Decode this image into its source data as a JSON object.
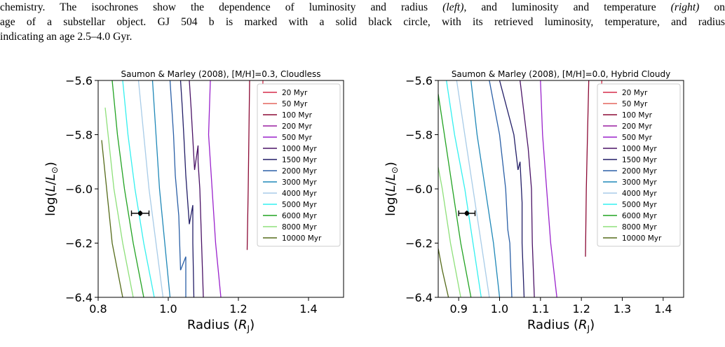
{
  "caption": {
    "line1_pre": "chemistry. The isochrones show the dependence of luminosity and radius ",
    "line1_left": "(left)",
    "line1_mid": ", and luminosity and temperature ",
    "line1_right": "(right)",
    "line1_post": " on",
    "line2": "age of a substellar object. GJ 504 b is marked with a solid black circle, with its retrieved luminosity, temperature, and radius",
    "line3": "indicating an age 2.5–4.0 Gyr."
  },
  "legend_labels": [
    "20 Myr",
    "50 Myr",
    "100 Myr",
    "200 Myr",
    "500 Myr",
    "1000 Myr",
    "1500 Myr",
    "2000 Myr",
    "3000 Myr",
    "4000 Myr",
    "5000 Myr",
    "6000 Myr",
    "8000 Myr",
    "10000 Myr"
  ],
  "series_colors": [
    "#d62c4a",
    "#e3675e",
    "#8b0a35",
    "#9a1ea0",
    "#9a22cc",
    "#4a1266",
    "#221d66",
    "#2a5fa6",
    "#1f88b8",
    "#a8cce8",
    "#33f0f0",
    "#22a322",
    "#8ee07a",
    "#556b1a"
  ],
  "chart_data": [
    {
      "type": "line",
      "title": "Saumon & Marley (2008), [M/H]=0.3, Cloudless",
      "xlabel_main": "Radius (",
      "xlabel_sym": "R",
      "xlabel_sub": "J",
      "xlabel_close": ")",
      "ylabel_main": "log(",
      "ylabel_sym1": "L",
      "ylabel_slash": "/",
      "ylabel_sym2": "L",
      "ylabel_sub": "⊙",
      "ylabel_close": ")",
      "xlim": [
        0.8,
        1.5
      ],
      "ylim": [
        -6.4,
        -5.6
      ],
      "xticks": [
        0.8,
        1.0,
        1.2,
        1.4
      ],
      "xtick_labels": [
        "0.8",
        "1.0",
        "1.2",
        "1.4"
      ],
      "yticks": [
        -6.4,
        -6.2,
        -6.0,
        -5.8,
        -5.6
      ],
      "ytick_labels": [
        "−6.4",
        "−6.2",
        "−6.0",
        "−5.8",
        "−5.6"
      ],
      "legend_position": "top-right",
      "point": {
        "x": 0.92,
        "y": -6.09,
        "xerr": 0.025,
        "yerr": 0.01
      },
      "series": [
        {
          "name": "20 Myr",
          "points": [
            [
              1.265,
              -5.865
            ],
            [
              1.27,
              -5.6
            ]
          ]
        },
        {
          "name": "50 Myr",
          "points": []
        },
        {
          "name": "100 Myr",
          "points": [
            [
              1.225,
              -6.225
            ],
            [
              1.228,
              -6.0
            ],
            [
              1.23,
              -5.8
            ],
            [
              1.232,
              -5.6
            ]
          ]
        },
        {
          "name": "200 Myr",
          "points": []
        },
        {
          "name": "500 Myr",
          "points": [
            [
              1.15,
              -6.4
            ],
            [
              1.135,
              -6.2
            ],
            [
              1.125,
              -6.0
            ],
            [
              1.115,
              -5.8
            ],
            [
              1.12,
              -5.6
            ]
          ]
        },
        {
          "name": "1000 Myr",
          "points": [
            [
              1.1,
              -6.4
            ],
            [
              1.095,
              -6.2
            ],
            [
              1.09,
              -6.0
            ],
            [
              1.085,
              -5.9
            ],
            [
              1.085,
              -5.84
            ],
            [
              1.075,
              -5.93
            ],
            [
              1.065,
              -5.7
            ],
            [
              1.06,
              -5.6
            ]
          ]
        },
        {
          "name": "1500 Myr",
          "points": [
            [
              1.073,
              -6.4
            ],
            [
              1.07,
              -6.2
            ],
            [
              1.07,
              -6.06
            ],
            [
              1.06,
              -6.13
            ],
            [
              1.05,
              -5.95
            ],
            [
              1.045,
              -5.82
            ],
            [
              1.04,
              -5.7
            ],
            [
              1.035,
              -5.6
            ]
          ]
        },
        {
          "name": "2000 Myr",
          "points": [
            [
              1.05,
              -6.4
            ],
            [
              1.05,
              -6.25
            ],
            [
              1.035,
              -6.3
            ],
            [
              1.03,
              -6.1
            ],
            [
              1.02,
              -5.95
            ],
            [
              1.015,
              -5.8
            ],
            [
              1.005,
              -5.6
            ]
          ]
        },
        {
          "name": "3000 Myr",
          "points": [
            [
              1.005,
              -6.4
            ],
            [
              0.99,
              -6.2
            ],
            [
              0.975,
              -6.0
            ],
            [
              0.965,
              -5.8
            ],
            [
              0.955,
              -5.6
            ]
          ]
        },
        {
          "name": "4000 Myr",
          "points": [
            [
              0.985,
              -6.4
            ],
            [
              0.965,
              -6.2
            ],
            [
              0.945,
              -6.0
            ],
            [
              0.93,
              -5.8
            ],
            [
              0.915,
              -5.6
            ]
          ]
        },
        {
          "name": "5000 Myr",
          "points": [
            [
              0.96,
              -6.4
            ],
            [
              0.93,
              -6.2
            ],
            [
              0.905,
              -6.0
            ],
            [
              0.885,
              -5.8
            ],
            [
              0.87,
              -5.6
            ]
          ]
        },
        {
          "name": "6000 Myr",
          "points": [
            [
              0.93,
              -6.4
            ],
            [
              0.9,
              -6.2
            ],
            [
              0.875,
              -6.0
            ],
            [
              0.855,
              -5.8
            ],
            [
              0.84,
              -5.6
            ]
          ]
        },
        {
          "name": "8000 Myr",
          "points": [
            [
              0.9,
              -6.4
            ],
            [
              0.87,
              -6.2
            ],
            [
              0.845,
              -6.0
            ],
            [
              0.82,
              -5.7
            ]
          ]
        },
        {
          "name": "10000 Myr",
          "points": [
            [
              0.87,
              -6.4
            ],
            [
              0.84,
              -6.2
            ],
            [
              0.81,
              -5.82
            ]
          ]
        }
      ]
    },
    {
      "type": "line",
      "title": "Saumon & Marley (2008), [M/H]=0.0, Hybrid Cloudy",
      "xlabel_main": "Radius (",
      "xlabel_sym": "R",
      "xlabel_sub": "J",
      "xlabel_close": ")",
      "ylabel_main": "log(",
      "ylabel_sym1": "L",
      "ylabel_slash": "/",
      "ylabel_sym2": "L",
      "ylabel_sub": "⊙",
      "ylabel_close": ")",
      "xlim": [
        0.85,
        1.45
      ],
      "ylim": [
        -6.4,
        -5.6
      ],
      "xticks": [
        0.9,
        1.0,
        1.1,
        1.2,
        1.3,
        1.4
      ],
      "xtick_labels": [
        "0.9",
        "1.0",
        "1.1",
        "1.2",
        "1.3",
        "1.4"
      ],
      "yticks": [
        -6.4,
        -6.2,
        -6.0,
        -5.8,
        -5.6
      ],
      "ytick_labels": [
        "−6.4",
        "−6.2",
        "−6.0",
        "−5.8",
        "−5.6"
      ],
      "legend_position": "top-right",
      "point": {
        "x": 0.92,
        "y": -6.09,
        "xerr": 0.02,
        "yerr": 0.01
      },
      "series": [
        {
          "name": "20 Myr",
          "points": [
            [
              1.245,
              -5.88
            ],
            [
              1.25,
              -5.6
            ]
          ]
        },
        {
          "name": "50 Myr",
          "points": []
        },
        {
          "name": "100 Myr",
          "points": [
            [
              1.21,
              -6.25
            ],
            [
              1.212,
              -6.0
            ],
            [
              1.215,
              -5.8
            ],
            [
              1.218,
              -5.6
            ]
          ]
        },
        {
          "name": "200 Myr",
          "points": []
        },
        {
          "name": "500 Myr",
          "points": [
            [
              1.14,
              -6.4
            ],
            [
              1.125,
              -6.2
            ],
            [
              1.115,
              -6.0
            ],
            [
              1.105,
              -5.8
            ],
            [
              1.1,
              -5.6
            ]
          ]
        },
        {
          "name": "1000 Myr",
          "points": [
            [
              1.085,
              -6.4
            ],
            [
              1.08,
              -6.2
            ],
            [
              1.078,
              -6.0
            ],
            [
              1.07,
              -5.85
            ],
            [
              1.05,
              -5.6
            ]
          ]
        },
        {
          "name": "1500 Myr",
          "points": [
            [
              1.06,
              -6.4
            ],
            [
              1.055,
              -6.2
            ],
            [
              1.055,
              -6.05
            ],
            [
              1.05,
              -5.9
            ],
            [
              1.045,
              -5.93
            ],
            [
              1.035,
              -5.8
            ],
            [
              1.0,
              -5.6
            ]
          ]
        },
        {
          "name": "2000 Myr",
          "points": [
            [
              1.03,
              -6.4
            ],
            [
              1.025,
              -6.2
            ],
            [
              1.02,
              -6.15
            ],
            [
              1.015,
              -6.0
            ],
            [
              1.0,
              -5.8
            ],
            [
              0.975,
              -5.6
            ]
          ]
        },
        {
          "name": "3000 Myr",
          "points": [
            [
              1.0,
              -6.4
            ],
            [
              0.985,
              -6.2
            ],
            [
              0.965,
              -6.0
            ],
            [
              0.945,
              -5.8
            ],
            [
              0.93,
              -5.6
            ]
          ]
        },
        {
          "name": "4000 Myr",
          "points": [
            [
              0.975,
              -6.4
            ],
            [
              0.955,
              -6.2
            ],
            [
              0.935,
              -6.0
            ],
            [
              0.915,
              -5.8
            ],
            [
              0.895,
              -5.6
            ]
          ]
        },
        {
          "name": "5000 Myr",
          "points": [
            [
              0.955,
              -6.4
            ],
            [
              0.935,
              -6.2
            ],
            [
              0.915,
              -6.0
            ],
            [
              0.89,
              -5.8
            ],
            [
              0.87,
              -5.6
            ]
          ]
        },
        {
          "name": "6000 Myr",
          "points": [
            [
              0.93,
              -6.4
            ],
            [
              0.905,
              -6.2
            ],
            [
              0.885,
              -6.0
            ],
            [
              0.865,
              -5.8
            ],
            [
              0.85,
              -5.65
            ]
          ]
        },
        {
          "name": "8000 Myr",
          "points": [
            [
              0.905,
              -6.4
            ],
            [
              0.88,
              -6.2
            ],
            [
              0.86,
              -6.0
            ],
            [
              0.85,
              -5.92
            ]
          ]
        },
        {
          "name": "10000 Myr",
          "points": [
            [
              0.875,
              -6.4
            ],
            [
              0.86,
              -6.3
            ],
            [
              0.85,
              -6.22
            ]
          ]
        }
      ]
    }
  ]
}
